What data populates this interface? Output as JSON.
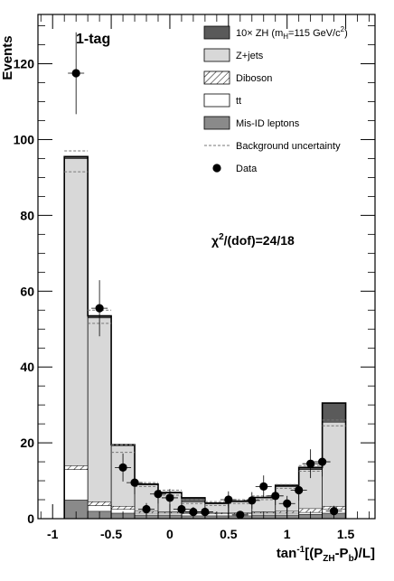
{
  "chart_data": {
    "type": "bar",
    "title": "",
    "tag_label": "1-tag",
    "annotation": {
      "base": "χ",
      "sup": "2",
      "rest": "/(dof)=24/18"
    },
    "ylabel": "Events",
    "xlabel": {
      "base": "tan",
      "sup": "-1",
      "rest1": "[(P",
      "sub1": "ZH",
      "rest2": "-P",
      "sub2": "b",
      "rest3": ")/L]"
    },
    "xlim": [
      -1.125,
      1.75
    ],
    "ylim": [
      0,
      133
    ],
    "x_ticks": [
      -1,
      -0.5,
      0,
      0.5,
      1,
      1.5
    ],
    "x_tick_labels": [
      "-1",
      "-0.5",
      "0",
      "0.5",
      "1",
      "1.5"
    ],
    "y_ticks": [
      0,
      20,
      40,
      60,
      80,
      100,
      120
    ],
    "y_tick_labels": [
      "0",
      "20",
      "40",
      "60",
      "80",
      "100",
      "120"
    ],
    "bin_edges": [
      -0.9,
      -0.7,
      -0.5,
      -0.3,
      -0.1,
      0.1,
      0.3,
      0.5,
      0.7,
      0.9,
      1.1,
      1.3,
      1.5
    ],
    "series": [
      {
        "name": "Mis-ID leptons",
        "type": "stack",
        "values": [
          5,
          2,
          1.5,
          1,
          1,
          0.8,
          0.8,
          0.8,
          1,
          1,
          1.2,
          1.5
        ]
      },
      {
        "name": "tt",
        "type": "stack",
        "values": [
          8,
          1.5,
          1,
          0.5,
          0.5,
          0.5,
          0.5,
          0.5,
          0.5,
          0.5,
          0.5,
          1
        ]
      },
      {
        "name": "Diboson",
        "type": "stack",
        "values": [
          1,
          1,
          0.8,
          0.5,
          0.3,
          0.3,
          0.3,
          0.3,
          0.3,
          0.5,
          1,
          0.8
        ]
      },
      {
        "name": "Z+jets",
        "type": "stack",
        "values": [
          81,
          48.5,
          16,
          7,
          5,
          2.9,
          2.4,
          2.9,
          3.7,
          6.5,
          10.3,
          22.2
        ]
      },
      {
        "name": "10× ZH",
        "type": "stack",
        "values": [
          0.5,
          0.5,
          0.2,
          0.1,
          0.1,
          1,
          0.1,
          0.1,
          0.1,
          0.3,
          0.5,
          5
        ]
      },
      {
        "name": "Background uncertainty",
        "type": "band",
        "upper": [
          97,
          55,
          19.5,
          9.5,
          7.5,
          5,
          4.5,
          5,
          6,
          9,
          14,
          26
        ],
        "lower": [
          91.5,
          51.5,
          17.5,
          8.5,
          6.2,
          4,
          3.5,
          4,
          5,
          8,
          12.5,
          24.5
        ]
      },
      {
        "name": "Data",
        "type": "points",
        "x": [
          -0.8,
          -0.6,
          -0.4,
          -0.3,
          -0.2,
          -0.1,
          0.0,
          0.1,
          0.2,
          0.3,
          0.5,
          0.6,
          0.7,
          0.8,
          0.9,
          1.0,
          1.1,
          1.2,
          1.3,
          1.4
        ],
        "y": [
          117.5,
          55.5,
          13.5,
          9.5,
          2.5,
          6.5,
          5.5,
          2.5,
          1.8,
          1.8,
          5,
          1,
          4.8,
          8.5,
          6,
          4,
          7.5,
          14.5,
          15,
          2
        ],
        "err": [
          10.8,
          7.4,
          3.7,
          3.1,
          1.6,
          2.5,
          2.3,
          1.6,
          1.3,
          1.3,
          2.2,
          1.0,
          2.2,
          2.9,
          2.4,
          2.0,
          2.7,
          3.8,
          3.9,
          1.4
        ]
      }
    ],
    "legend": {
      "placement": "top-right",
      "entries": [
        {
          "label_base": "10× ZH (m",
          "label_sub": "H",
          "label_rest": "=115 GeV/c",
          "label_sup": "2",
          "label_end": ")",
          "symbol": "fill",
          "color": "#5a5a5a"
        },
        {
          "label": "Z+jets",
          "symbol": "fill",
          "color": "#d8d8d8"
        },
        {
          "label": "Diboson",
          "symbol": "hatch",
          "color": "#ffffff"
        },
        {
          "label": "tt",
          "symbol": "fill",
          "color": "#ffffff"
        },
        {
          "label": "Mis-ID leptons",
          "symbol": "fill",
          "color": "#8a8a8a"
        },
        {
          "label": "Background uncertainty",
          "symbol": "dashed",
          "color": "#777777"
        },
        {
          "label": "Data",
          "symbol": "marker",
          "color": "#000000"
        }
      ]
    },
    "grid": false
  }
}
